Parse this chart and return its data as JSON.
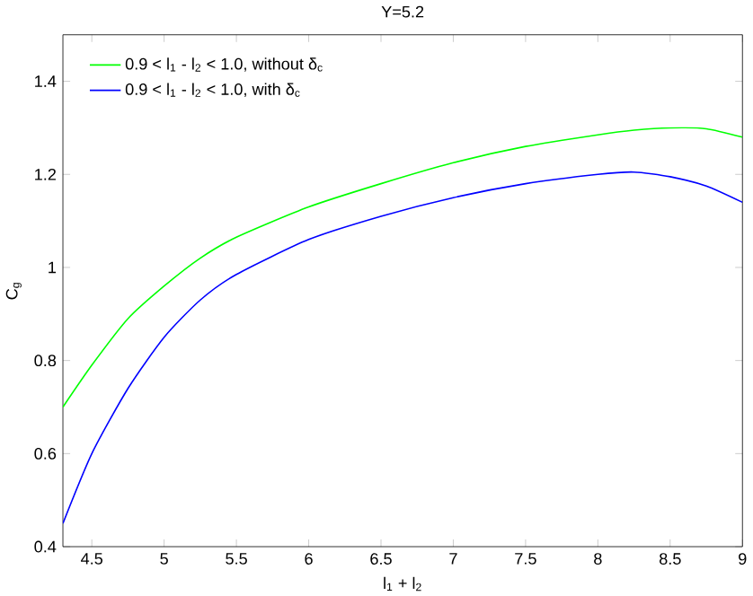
{
  "chart_data": {
    "type": "line",
    "title": "Y=5.2",
    "xlabel": "l$_{1}$ + l$_{2}$",
    "ylabel": "C$_{g}$",
    "x": [
      4.3,
      4.5,
      4.75,
      5.0,
      5.25,
      5.5,
      6.0,
      6.5,
      7.0,
      7.5,
      8.0,
      8.25,
      8.5,
      8.75,
      9.0
    ],
    "series": [
      {
        "name": "0.9 < l$_{1}$ - l$_{2}$ < 1.0, without δ$_{c}$",
        "color": "#00ff00",
        "values": [
          0.7,
          0.79,
          0.89,
          0.96,
          1.02,
          1.065,
          1.13,
          1.18,
          1.225,
          1.26,
          1.285,
          1.295,
          1.3,
          1.298,
          1.28
        ]
      },
      {
        "name": "0.9 < l$_{1}$ - l$_{2}$ < 1.0, with δ$_{c}$",
        "color": "#0000ff",
        "values": [
          0.45,
          0.6,
          0.74,
          0.85,
          0.93,
          0.985,
          1.06,
          1.11,
          1.15,
          1.18,
          1.2,
          1.205,
          1.195,
          1.175,
          1.14
        ]
      }
    ],
    "xlim": [
      4.3,
      9
    ],
    "ylim": [
      0.4,
      1.5
    ],
    "xticks": [
      4.5,
      5,
      5.5,
      6,
      6.5,
      7,
      7.5,
      8,
      8.5,
      9
    ],
    "yticks": [
      0.4,
      0.6,
      0.8,
      1,
      1.2,
      1.4
    ],
    "legend": "top left",
    "grid": false,
    "marker": "none",
    "line_style": "solid"
  }
}
